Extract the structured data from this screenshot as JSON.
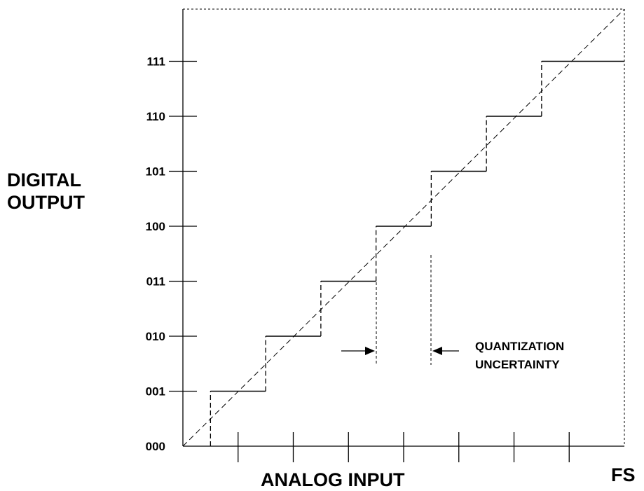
{
  "diagram": {
    "y_axis_title": [
      "DIGITAL",
      "OUTPUT"
    ],
    "x_axis_title": "ANALOG INPUT",
    "x_end_label": "FS",
    "y_codes": [
      "000",
      "001",
      "010",
      "011",
      "100",
      "101",
      "110",
      "111"
    ],
    "annotation": [
      "QUANTIZATION",
      "UNCERTAINTY"
    ],
    "x_ticks": 8,
    "quantization_levels": 8
  }
}
